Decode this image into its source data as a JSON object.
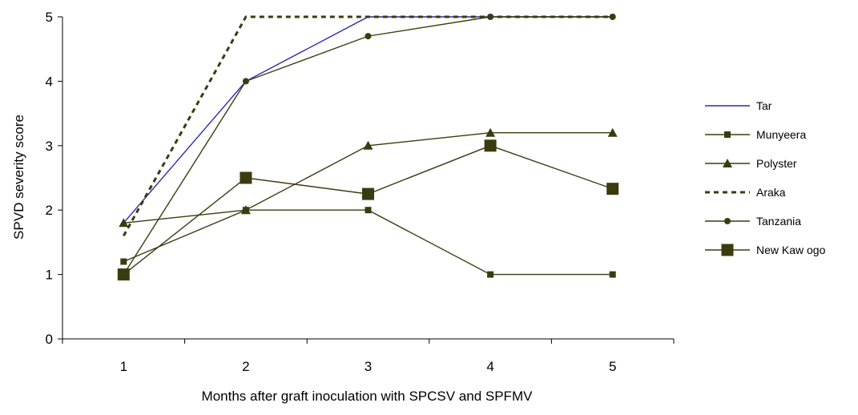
{
  "chart_data": {
    "type": "line",
    "title": "",
    "xlabel": "Months after graft inoculation with SPCSV and SPFMV",
    "ylabel": "SPVD severity score",
    "x": [
      1,
      2,
      3,
      4,
      5
    ],
    "xlim": [
      0.5,
      5.5
    ],
    "ylim": [
      0,
      5
    ],
    "y_ticks": [
      0,
      1,
      2,
      3,
      4,
      5
    ],
    "grid": false,
    "legend_position": "right",
    "series": [
      {
        "name": "Tar",
        "values": [
          1.8,
          4.0,
          5.0,
          5.0,
          5.0
        ],
        "color": "#2b2bb0",
        "marker": "none",
        "dash": "solid"
      },
      {
        "name": "Munyeera",
        "values": [
          1.2,
          2.0,
          2.0,
          1.0,
          1.0
        ],
        "color": "#3b3b10",
        "marker": "square-small",
        "dash": "solid"
      },
      {
        "name": "Polyster",
        "values": [
          1.8,
          2.0,
          3.0,
          3.2,
          3.2
        ],
        "color": "#3b3b10",
        "marker": "triangle",
        "dash": "solid"
      },
      {
        "name": "Araka",
        "values": [
          1.6,
          5.0,
          5.0,
          5.0,
          5.0
        ],
        "color": "#3b3b10",
        "marker": "none",
        "dash": "dashed"
      },
      {
        "name": "Tanzania",
        "values": [
          1.0,
          4.0,
          4.7,
          5.0,
          5.0
        ],
        "color": "#3b3b10",
        "marker": "circle",
        "dash": "solid"
      },
      {
        "name": "New Kaw ogo",
        "values": [
          1.0,
          2.5,
          2.25,
          3.0,
          2.33
        ],
        "color": "#3b3b10",
        "marker": "square-large",
        "dash": "solid"
      }
    ]
  }
}
